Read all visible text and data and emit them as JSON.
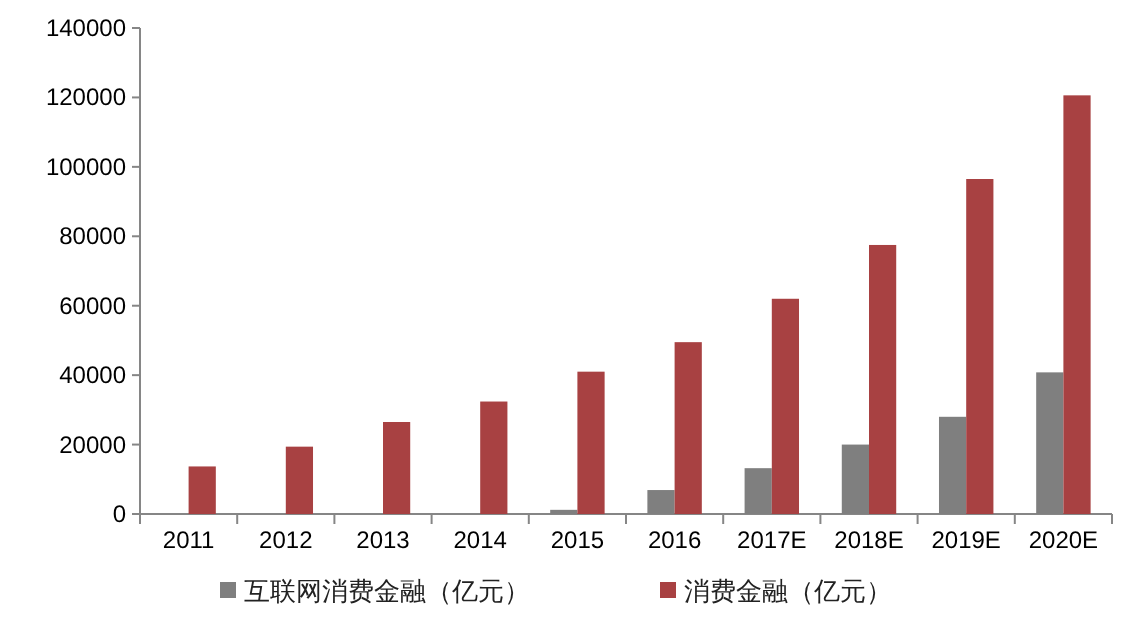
{
  "chart_data": {
    "type": "bar",
    "categories": [
      "2011",
      "2012",
      "2013",
      "2014",
      "2015",
      "2016",
      "2017E",
      "2018E",
      "2019E",
      "2020E"
    ],
    "series": [
      {
        "name": "互联网消费金融（亿元）",
        "color": "#7f7f7f",
        "values": [
          null,
          null,
          null,
          null,
          1200,
          6900,
          13200,
          20000,
          28000,
          40800
        ]
      },
      {
        "name": "消费金融（亿元）",
        "color": "#a84142",
        "values": [
          13700,
          19400,
          26500,
          32400,
          41000,
          49500,
          62000,
          77500,
          96500,
          120600
        ]
      }
    ],
    "ylim": [
      0,
      140000
    ],
    "yticks": [
      0,
      20000,
      40000,
      60000,
      80000,
      100000,
      120000,
      140000
    ],
    "grid": false,
    "legend": "bottom"
  }
}
